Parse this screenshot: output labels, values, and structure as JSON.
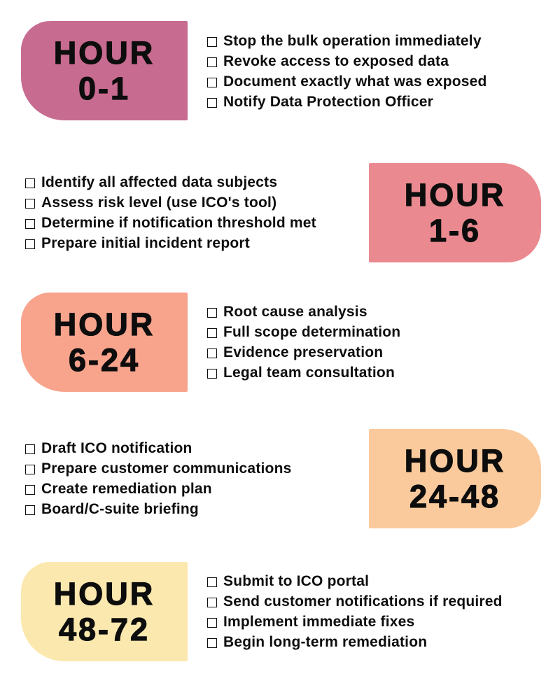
{
  "page": {
    "background_color": "#ffffff",
    "text_color": "#0d0d0d",
    "checkbox_icon": "empty-checkbox"
  },
  "rows": [
    {
      "side": "left",
      "pill": {
        "line1": "HOUR",
        "line2": "0-1",
        "color": "#c86b91"
      },
      "items": [
        "Stop the bulk operation immediately",
        "Revoke access to exposed data",
        "Document exactly what was exposed",
        "Notify Data Protection Officer"
      ]
    },
    {
      "side": "right",
      "pill": {
        "line1": "HOUR",
        "line2": "1-6",
        "color": "#ea8a90"
      },
      "items": [
        "Identify all affected data subjects",
        "Assess risk level (use ICO's tool)",
        "Determine if notification threshold met",
        "Prepare initial incident report"
      ]
    },
    {
      "side": "left",
      "pill": {
        "line1": "HOUR",
        "line2": "6-24",
        "color": "#f8a38c"
      },
      "items": [
        "Root cause analysis",
        "Full scope determination",
        "Evidence preservation",
        "Legal team consultation"
      ]
    },
    {
      "side": "right",
      "pill": {
        "line1": "HOUR",
        "line2": "24-48",
        "color": "#fbca9c"
      },
      "items": [
        "Draft ICO notification",
        "Prepare customer communications",
        "Create remediation plan",
        "Board/C-suite briefing"
      ]
    },
    {
      "side": "left",
      "pill": {
        "line1": "HOUR",
        "line2": "48-72",
        "color": "#fbe8ae"
      },
      "items": [
        "Submit to ICO portal",
        "Send customer notifications if required",
        "Implement immediate fixes",
        "Begin long-term remediation"
      ]
    }
  ]
}
